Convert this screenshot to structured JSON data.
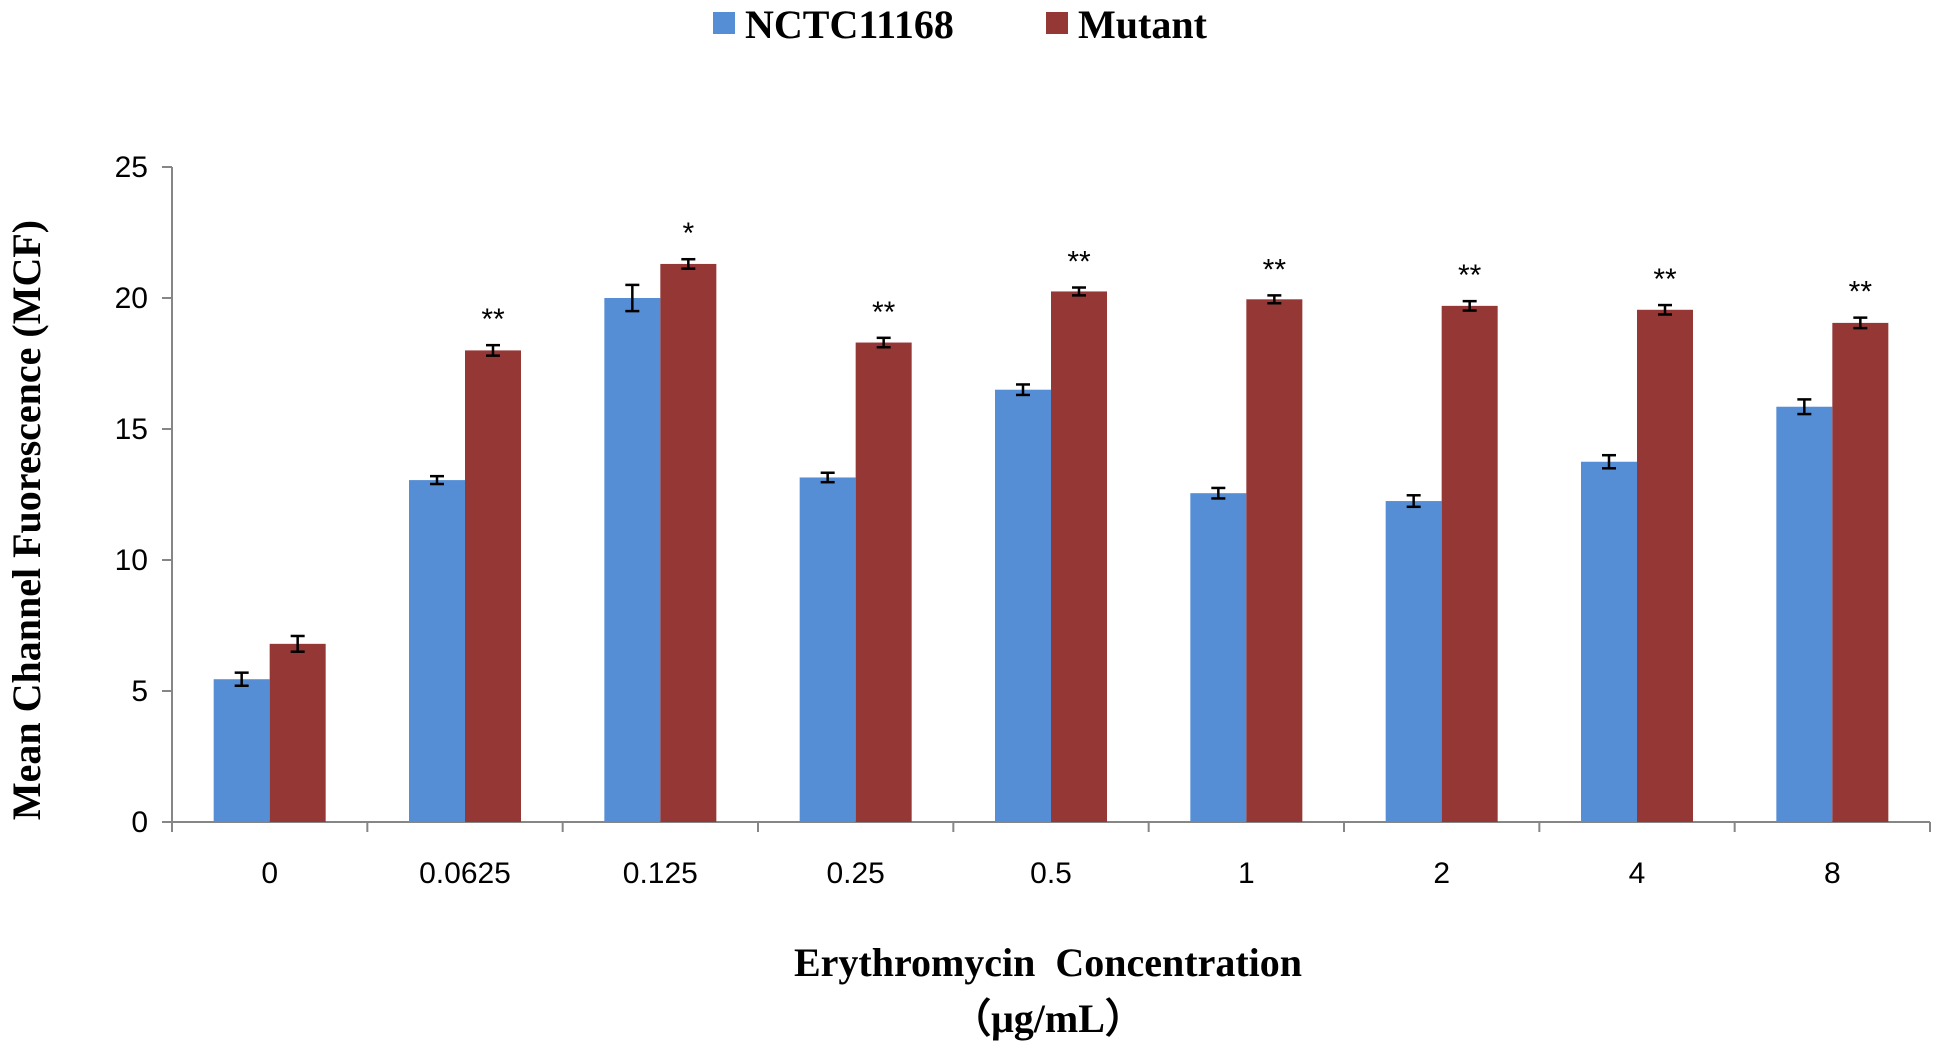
{
  "chart_data": {
    "type": "bar",
    "categories": [
      "0",
      "0.0625",
      "0.125",
      "0.25",
      "0.5",
      "1",
      "2",
      "4",
      "8"
    ],
    "series": [
      {
        "name": "NCTC11168",
        "color": "#558ED5",
        "values": [
          5.45,
          13.05,
          20.0,
          13.15,
          16.5,
          12.55,
          12.25,
          13.75,
          15.85
        ],
        "errors": [
          0.25,
          0.15,
          0.5,
          0.18,
          0.2,
          0.2,
          0.22,
          0.25,
          0.28
        ]
      },
      {
        "name": "Mutant",
        "color": "#953735",
        "values": [
          6.8,
          18.0,
          21.3,
          18.3,
          20.25,
          19.95,
          19.7,
          19.55,
          19.05
        ],
        "errors": [
          0.3,
          0.2,
          0.18,
          0.18,
          0.15,
          0.15,
          0.18,
          0.18,
          0.2
        ]
      }
    ],
    "significance": [
      "",
      "**",
      "*",
      "**",
      "**",
      "**",
      "**",
      "**",
      "**"
    ],
    "ylabel": "Mean Channel Fuorescence (MCF)",
    "xlabel": "Erythromycin  Concentration",
    "xlabel_units": "（μg/mL）",
    "ylim": [
      0,
      25
    ],
    "yticks": [
      "0",
      "5",
      "10",
      "15",
      "20",
      "25"
    ],
    "legend_position": "top-center",
    "grid": false
  }
}
